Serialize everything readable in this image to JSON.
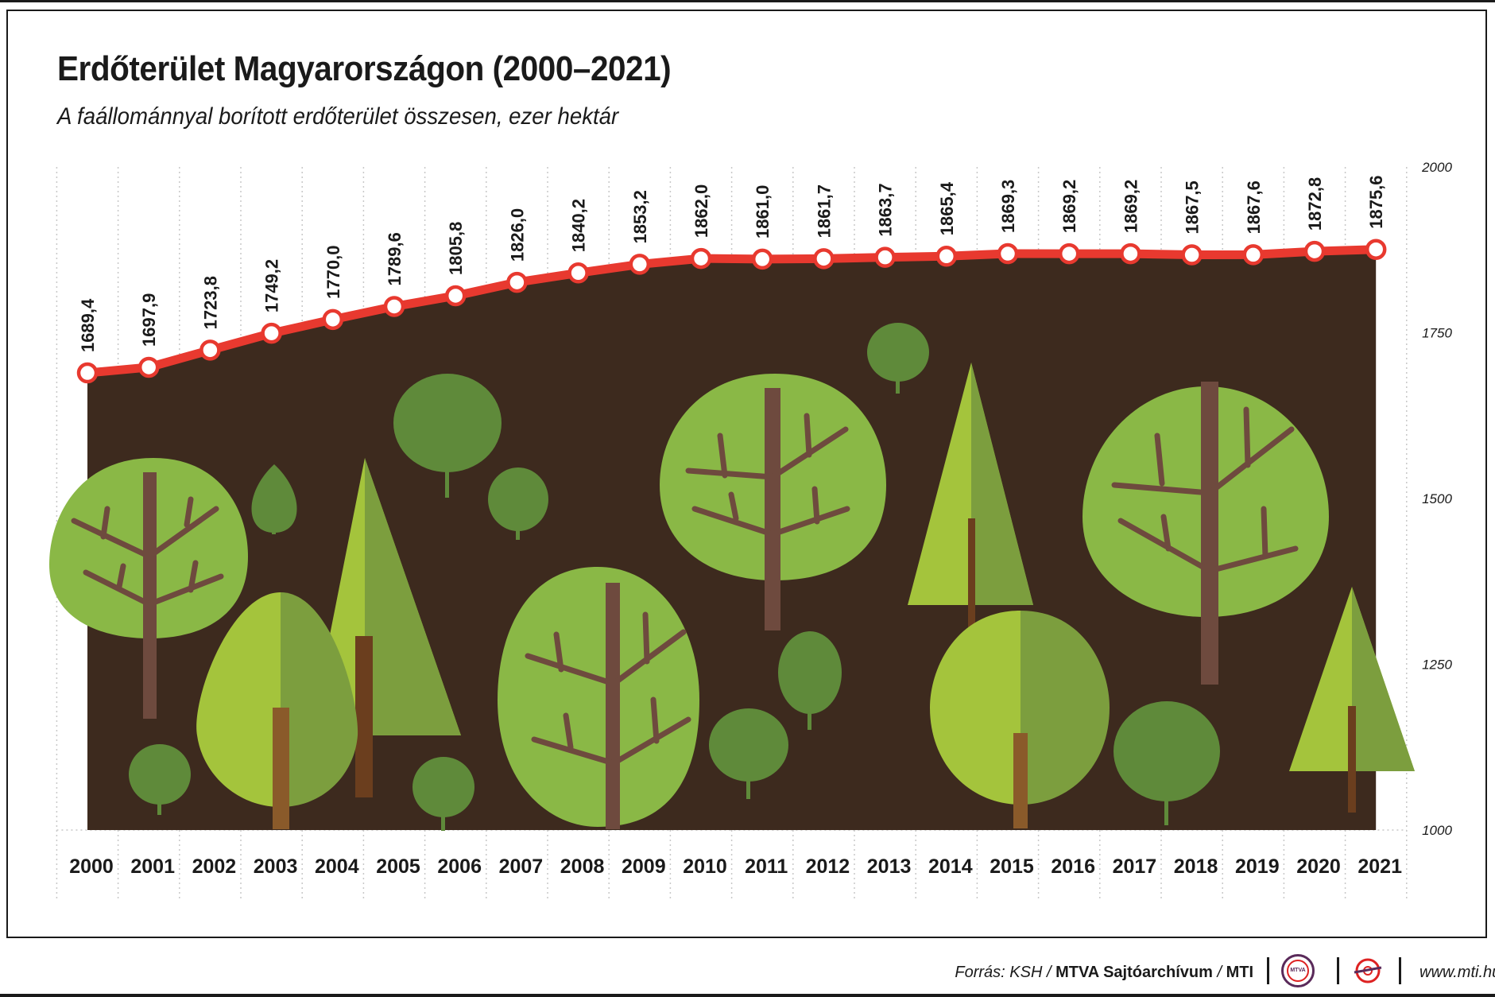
{
  "title": "Erdőterület Magyarországon (2000–2021)",
  "subtitle": "A faállománnyal borított erdőterület összesen, ezer hektár",
  "chart_data": {
    "type": "line",
    "title": "Erdőterület Magyarországon (2000–2021)",
    "subtitle": "A faállománnyal borított erdőterület összesen, ezer hektár",
    "x": [
      "2000",
      "2001",
      "2002",
      "2003",
      "2004",
      "2005",
      "2006",
      "2007",
      "2008",
      "2009",
      "2010",
      "2011",
      "2012",
      "2013",
      "2014",
      "2015",
      "2016",
      "2017",
      "2018",
      "2019",
      "2020",
      "2021"
    ],
    "series": [
      {
        "values": [
          1689.4,
          1697.9,
          1723.8,
          1749.2,
          1770.0,
          1789.6,
          1805.8,
          1826.0,
          1840.2,
          1853.2,
          1862.0,
          1861.0,
          1861.7,
          1863.7,
          1865.4,
          1869.3,
          1869.2,
          1869.2,
          1867.5,
          1867.6,
          1872.8,
          1875.6
        ]
      }
    ],
    "value_labels": [
      "1689,4",
      "1697,9",
      "1723,8",
      "1749,2",
      "1770,0",
      "1789,6",
      "1805,8",
      "1826,0",
      "1840,2",
      "1853,2",
      "1862,0",
      "1861,0",
      "1861,7",
      "1863,7",
      "1865,4",
      "1869,3",
      "1869,2",
      "1869,2",
      "1867,5",
      "1867,6",
      "1872,8",
      "1875,6"
    ],
    "ylim": [
      1000,
      2000
    ],
    "y_ticks": [
      1000,
      1250,
      1500,
      1750,
      2000
    ],
    "y_axis_side": "right",
    "grid": "vertical dotted",
    "colors": {
      "line": "#e8392f",
      "marker_fill": "#ffffff",
      "area": "#3d2a1e"
    }
  },
  "footer": {
    "source_prefix": "Forrás: KSH / ",
    "source_bold": "MTVA Sajtóarchívum",
    "source_sep": " / ",
    "source_bold2": "MTI",
    "logo_text": "MTVA",
    "website": "www.mti.hu"
  }
}
